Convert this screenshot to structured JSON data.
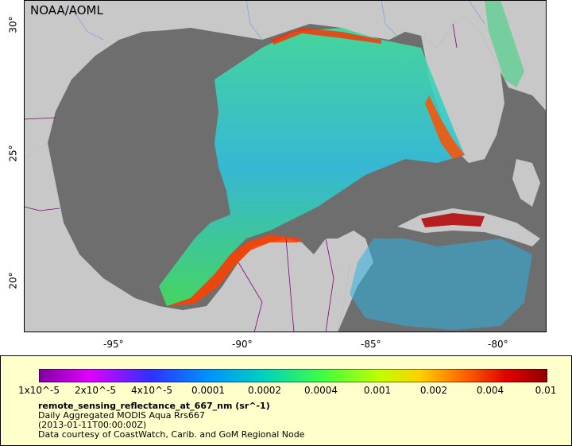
{
  "map": {
    "credit": "NOAA/AOML",
    "ocean_color": "#6e6e6e",
    "land_color": "#c8c8c8",
    "border_color": "#800080",
    "river_color": "#7fa7d9"
  },
  "axes": {
    "lat_labels": [
      "30°",
      "25°",
      "20°"
    ],
    "lon_labels": [
      "-95°",
      "-90°",
      "-85°",
      "-80°"
    ]
  },
  "colorbar": {
    "tick_labels": [
      "1x10^-5",
      "2x10^-5",
      "4x10^-5",
      "0.0001",
      "0.0002",
      "0.0004",
      "0.001",
      "0.002",
      "0.004",
      "0.01"
    ],
    "colors": [
      "#8000a0",
      "#e000ff",
      "#3030ff",
      "#0090ff",
      "#00d0c0",
      "#40ff40",
      "#c0ff00",
      "#ffd000",
      "#ff6000",
      "#e00000",
      "#900000"
    ]
  },
  "legend": {
    "title": "remote_sensing_reflectance_at_667_nm (sr^-1)",
    "line1": "Daily Aggregated MODIS Aqua Rrs667",
    "line2": "(2013-01-11T00:00:00Z)",
    "line3": "Data courtesy of CoastWatch, Carib. and GoM Regional Node"
  }
}
